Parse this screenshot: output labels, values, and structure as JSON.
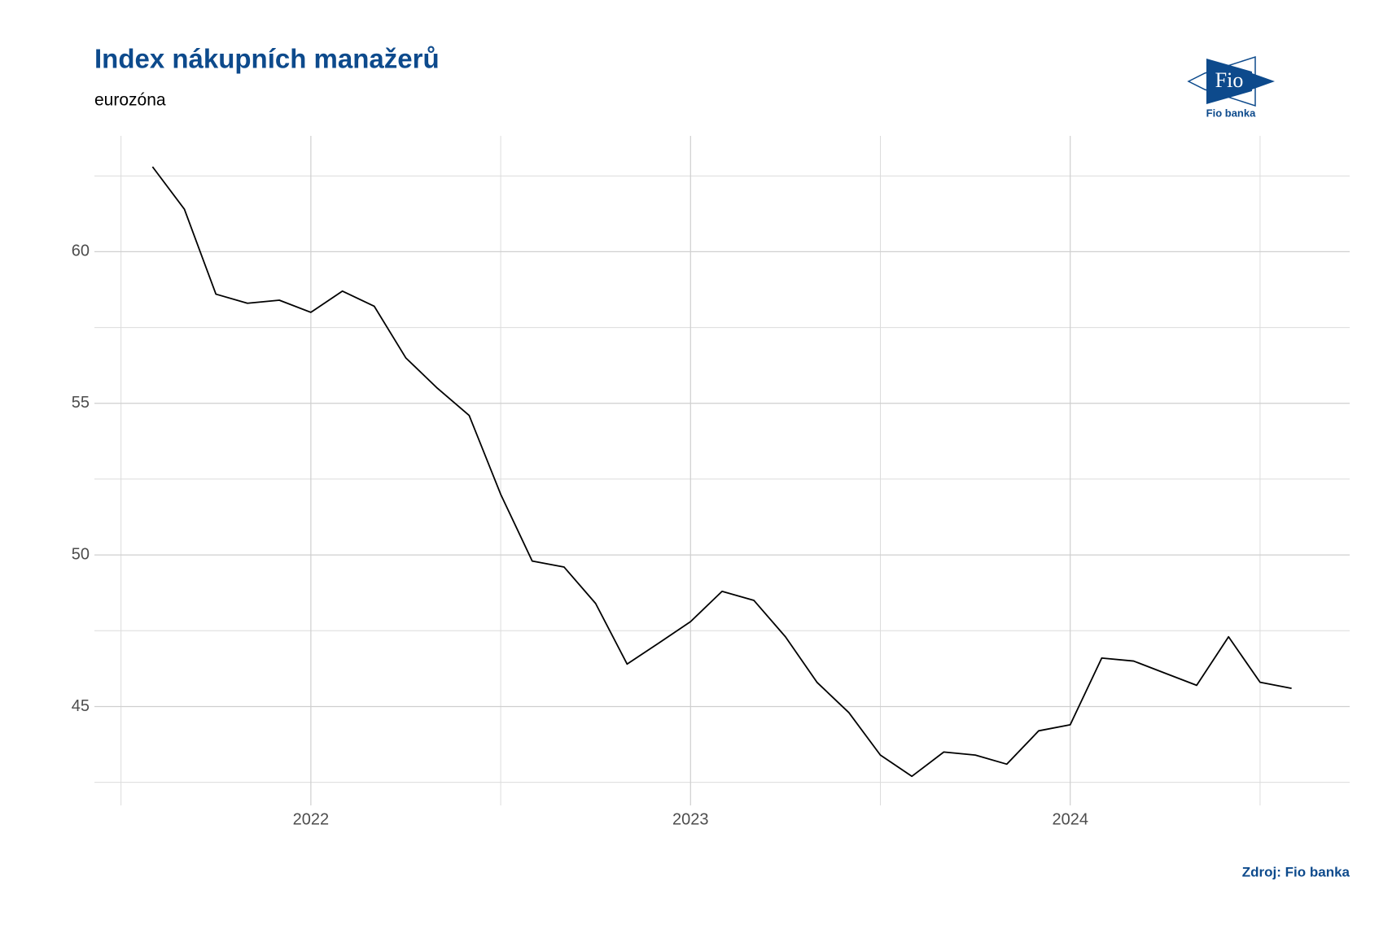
{
  "chart_data": {
    "type": "line",
    "title": "Index nákupních manažerů",
    "subtitle": "eurozóna",
    "source": "Zdroj: Fio banka",
    "logo": {
      "mark": "Fio",
      "name": "Fio banka"
    },
    "x": [
      2021.583,
      2021.667,
      2021.75,
      2021.833,
      2021.917,
      2022,
      2022.083,
      2022.167,
      2022.25,
      2022.333,
      2022.417,
      2022.5,
      2022.583,
      2022.667,
      2022.75,
      2022.833,
      2022.917,
      2023,
      2023.083,
      2023.167,
      2023.25,
      2023.333,
      2023.417,
      2023.5,
      2023.583,
      2023.667,
      2023.75,
      2023.833,
      2023.917,
      2024,
      2024.083,
      2024.167,
      2024.25,
      2024.333,
      2024.417,
      2024.5,
      2024.583
    ],
    "series": [
      {
        "color": "#000000",
        "values": [
          62.8,
          61.4,
          58.6,
          58.3,
          58.4,
          58.0,
          58.7,
          58.2,
          56.5,
          55.5,
          54.6,
          52.0,
          49.8,
          49.6,
          48.4,
          46.4,
          47.1,
          47.8,
          48.8,
          48.5,
          47.3,
          45.8,
          44.8,
          43.4,
          42.7,
          43.5,
          43.4,
          43.1,
          44.2,
          44.4,
          46.6,
          46.5,
          46.1,
          45.7,
          47.3,
          45.8,
          45.6
        ]
      }
    ],
    "xlim": [
      2021.43,
      2024.736
    ],
    "xticks": [
      2022,
      2023,
      2024
    ],
    "xminorticks": [
      2021.5,
      2022.5,
      2023.5,
      2024.5
    ],
    "ylim": [
      41.74,
      63.82
    ],
    "yticks": [
      45,
      50,
      55,
      60
    ],
    "yminorticks": [
      42.5,
      47.5,
      52.5,
      57.5,
      62.5
    ],
    "grid": true
  }
}
